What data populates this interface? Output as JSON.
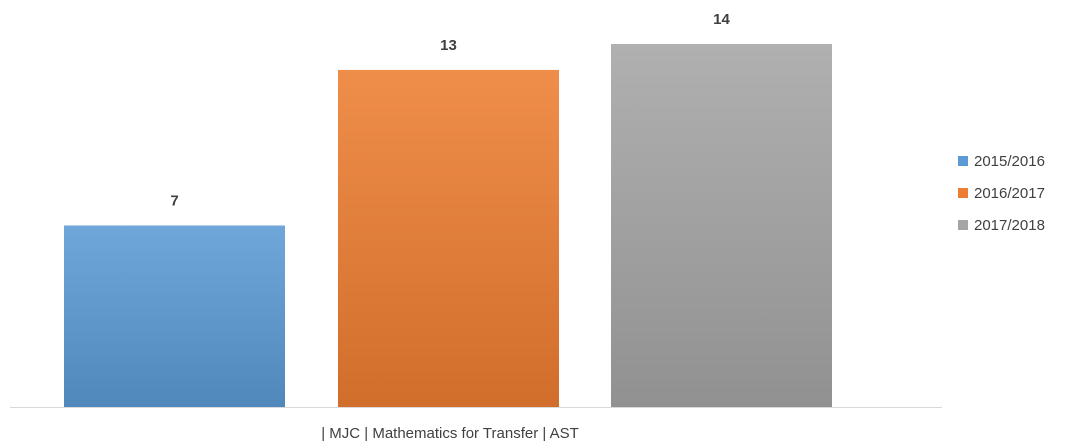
{
  "chart_data": {
    "type": "bar",
    "categories": [
      "| MJC | Mathematics for Transfer | AST"
    ],
    "series": [
      {
        "name": "2015/2016",
        "values": [
          7
        ],
        "color": "#5b9bd5"
      },
      {
        "name": "2016/2017",
        "values": [
          13
        ],
        "color": "#ed7d31"
      },
      {
        "name": "2017/2018",
        "values": [
          14
        ],
        "color": "#a5a5a5"
      }
    ],
    "title": "",
    "xlabel": "",
    "ylabel": "",
    "ylim": [
      0,
      14
    ],
    "grid": false,
    "legend_position": "right",
    "data_labels": true
  }
}
